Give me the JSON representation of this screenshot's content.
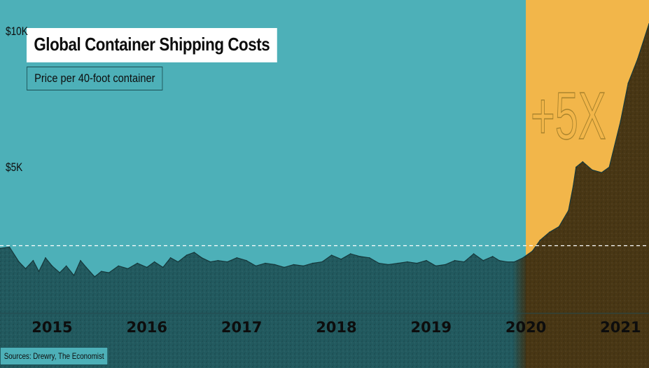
{
  "header": {
    "title": "Global Container Shipping Costs",
    "subtitle": "Price per 40-foot container"
  },
  "source": "Sources: Drewry, The Economist",
  "annotation": "+5X",
  "colors": {
    "background": "#4db0b8",
    "highlight_band": "#f2b64a",
    "area_fill_early": "#1e5257",
    "area_fill_late": "#3a2c10",
    "baseline_dashed": "#ffffff",
    "text": "#0d0d0d"
  },
  "chart_data": {
    "type": "area",
    "title": "Global Container Shipping Costs",
    "subtitle": "Price per 40-foot container",
    "xlabel": "",
    "ylabel": "",
    "y_tick_labels": [
      {
        "value": 5000,
        "label": "$5K"
      },
      {
        "value": 10000,
        "label": "$10K"
      }
    ],
    "x_tick_labels": [
      {
        "value": 2015,
        "label": "2015"
      },
      {
        "value": 2016,
        "label": "2016"
      },
      {
        "value": 2017,
        "label": "2017"
      },
      {
        "value": 2018,
        "label": "2018"
      },
      {
        "value": 2019,
        "label": "2019"
      },
      {
        "value": 2020,
        "label": "2020"
      },
      {
        "value": 2021,
        "label": "2021"
      }
    ],
    "xlim": [
      2014.45,
      2021.3
    ],
    "ylim": [
      -400,
      10400
    ],
    "highlight_range": [
      2020.0,
      2021.3
    ],
    "reference_line_y": 2100,
    "grid": false,
    "legend": "none",
    "series": [
      {
        "x": [
          2014.45,
          2014.55,
          2014.65,
          2014.72,
          2014.8,
          2014.86,
          2014.93,
          2015.0,
          2015.08,
          2015.15,
          2015.23,
          2015.3,
          2015.36,
          2015.45,
          2015.52,
          2015.6,
          2015.7,
          2015.8,
          2015.9,
          2016.0,
          2016.08,
          2016.17,
          2016.25,
          2016.33,
          2016.42,
          2016.5,
          2016.58,
          2016.67,
          2016.75,
          2016.85,
          2016.95,
          2017.05,
          2017.15,
          2017.25,
          2017.35,
          2017.45,
          2017.55,
          2017.65,
          2017.75,
          2017.85,
          2017.95,
          2018.05,
          2018.15,
          2018.25,
          2018.35,
          2018.45,
          2018.55,
          2018.65,
          2018.75,
          2018.85,
          2018.95,
          2019.05,
          2019.15,
          2019.25,
          2019.35,
          2019.45,
          2019.55,
          2019.65,
          2019.72,
          2019.8,
          2019.88,
          2019.97,
          2020.07,
          2020.15,
          2020.25,
          2020.35,
          2020.45,
          2020.5,
          2020.53,
          2020.6,
          2020.7,
          2020.8,
          2020.88,
          2021.0,
          2021.08,
          2021.18,
          2021.3
        ],
        "y": [
          2000,
          2050,
          1500,
          1250,
          1550,
          1150,
          1650,
          1350,
          1100,
          1350,
          1000,
          1550,
          1300,
          950,
          1150,
          1100,
          1350,
          1250,
          1450,
          1300,
          1500,
          1300,
          1650,
          1500,
          1750,
          1850,
          1650,
          1500,
          1550,
          1500,
          1650,
          1550,
          1350,
          1450,
          1400,
          1300,
          1400,
          1350,
          1450,
          1500,
          1750,
          1600,
          1800,
          1700,
          1650,
          1450,
          1400,
          1450,
          1500,
          1450,
          1550,
          1350,
          1400,
          1550,
          1500,
          1800,
          1550,
          1700,
          1550,
          1500,
          1500,
          1650,
          1900,
          2300,
          2600,
          2800,
          3400,
          4300,
          5000,
          5200,
          4900,
          4800,
          5000,
          6700,
          8100,
          9000,
          10300
        ]
      }
    ]
  }
}
